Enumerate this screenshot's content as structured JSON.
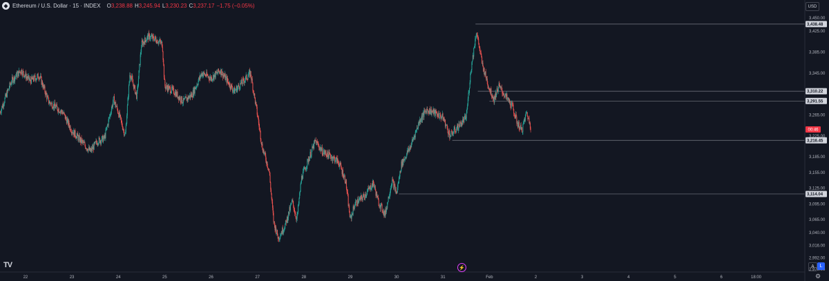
{
  "header": {
    "symbol": "Ethereum / U.S. Dollar · 15 · INDEX",
    "open_label": "O",
    "open": "3,238.88",
    "high_label": "H",
    "high": "3,245.94",
    "low_label": "L",
    "low": "3,230.23",
    "close_label": "C",
    "close": "3,237.17",
    "change": "−1.75 (−0.05%)"
  },
  "currency": "USD",
  "countdown": "00:46",
  "buttons": {
    "auto": "A",
    "log": "L"
  },
  "colors": {
    "background": "#131722",
    "up": "#26a69a",
    "down": "#ef5350",
    "countdown": "#f23645",
    "line": "#787b86"
  },
  "chart_data": {
    "type": "candlestick",
    "ylim": [
      2965,
      3462
    ],
    "y_ticks": [
      "3,450.00",
      "3,425.00",
      "3,385.00",
      "3,345.00",
      "3,265.00",
      "3,225.00",
      "3,185.00",
      "3,155.00",
      "3,125.00",
      "3,095.00",
      "3,065.00",
      "3,040.00",
      "3,016.00",
      "2,992.00",
      "2,970.00"
    ],
    "y_tick_values": [
      3450,
      3425,
      3385,
      3345,
      3265,
      3225,
      3185,
      3155,
      3125,
      3095,
      3065,
      3040,
      3016,
      2992,
      2970
    ],
    "x_ticks": [
      "22",
      "23",
      "24",
      "25",
      "26",
      "27",
      "28",
      "29",
      "30",
      "31",
      "Feb",
      "2",
      "3",
      "4",
      "5",
      "6",
      "18:00"
    ],
    "x_tick_days": [
      22,
      23,
      24,
      25,
      26,
      27,
      28,
      29,
      30,
      31,
      32,
      33,
      34,
      35,
      36,
      37,
      37.75
    ],
    "x_range_days": [
      21.45,
      38.8
    ],
    "price_levels": [
      {
        "label": "3,438.48",
        "value": 3438.48,
        "from_day": 31.7
      },
      {
        "label": "3,310.22",
        "value": 3310.22,
        "from_day": 31.75
      },
      {
        "label": "3,291.55",
        "value": 3291.55,
        "from_day": 32.0
      },
      {
        "label": "3,216.45",
        "value": 3216.45,
        "from_day": 31.2
      },
      {
        "label": "3,114.04",
        "value": 3114.04,
        "from_day": 30.05
      }
    ],
    "current_price": 3237.17,
    "path": [
      [
        21.45,
        3270
      ],
      [
        21.7,
        3330
      ],
      [
        21.9,
        3350
      ],
      [
        22.1,
        3330
      ],
      [
        22.3,
        3340
      ],
      [
        22.5,
        3290
      ],
      [
        22.8,
        3270
      ],
      [
        23.0,
        3235
      ],
      [
        23.2,
        3215
      ],
      [
        23.4,
        3195
      ],
      [
        23.55,
        3215
      ],
      [
        23.7,
        3220
      ],
      [
        23.9,
        3295
      ],
      [
        24.0,
        3270
      ],
      [
        24.15,
        3225
      ],
      [
        24.25,
        3345
      ],
      [
        24.4,
        3300
      ],
      [
        24.5,
        3400
      ],
      [
        24.65,
        3415
      ],
      [
        24.8,
        3410
      ],
      [
        24.95,
        3400
      ],
      [
        25.0,
        3320
      ],
      [
        25.2,
        3310
      ],
      [
        25.4,
        3290
      ],
      [
        25.6,
        3305
      ],
      [
        25.8,
        3345
      ],
      [
        26.0,
        3335
      ],
      [
        26.2,
        3350
      ],
      [
        26.35,
        3330
      ],
      [
        26.5,
        3310
      ],
      [
        26.7,
        3330
      ],
      [
        26.85,
        3345
      ],
      [
        27.0,
        3265
      ],
      [
        27.1,
        3205
      ],
      [
        27.25,
        3160
      ],
      [
        27.35,
        3060
      ],
      [
        27.45,
        3030
      ],
      [
        27.6,
        3055
      ],
      [
        27.75,
        3100
      ],
      [
        27.85,
        3065
      ],
      [
        27.95,
        3145
      ],
      [
        28.1,
        3180
      ],
      [
        28.25,
        3215
      ],
      [
        28.4,
        3195
      ],
      [
        28.6,
        3185
      ],
      [
        28.75,
        3175
      ],
      [
        28.9,
        3140
      ],
      [
        29.0,
        3065
      ],
      [
        29.1,
        3095
      ],
      [
        29.3,
        3110
      ],
      [
        29.5,
        3135
      ],
      [
        29.6,
        3100
      ],
      [
        29.75,
        3075
      ],
      [
        29.9,
        3140
      ],
      [
        30.0,
        3115
      ],
      [
        30.1,
        3170
      ],
      [
        30.3,
        3205
      ],
      [
        30.5,
        3255
      ],
      [
        30.65,
        3275
      ],
      [
        30.8,
        3270
      ],
      [
        31.0,
        3260
      ],
      [
        31.15,
        3225
      ],
      [
        31.3,
        3240
      ],
      [
        31.5,
        3260
      ],
      [
        31.6,
        3350
      ],
      [
        31.72,
        3425
      ],
      [
        31.85,
        3360
      ],
      [
        32.0,
        3315
      ],
      [
        32.1,
        3295
      ],
      [
        32.2,
        3320
      ],
      [
        32.35,
        3300
      ],
      [
        32.5,
        3280
      ],
      [
        32.6,
        3250
      ],
      [
        32.7,
        3235
      ],
      [
        32.8,
        3270
      ],
      [
        32.9,
        3240
      ]
    ]
  }
}
